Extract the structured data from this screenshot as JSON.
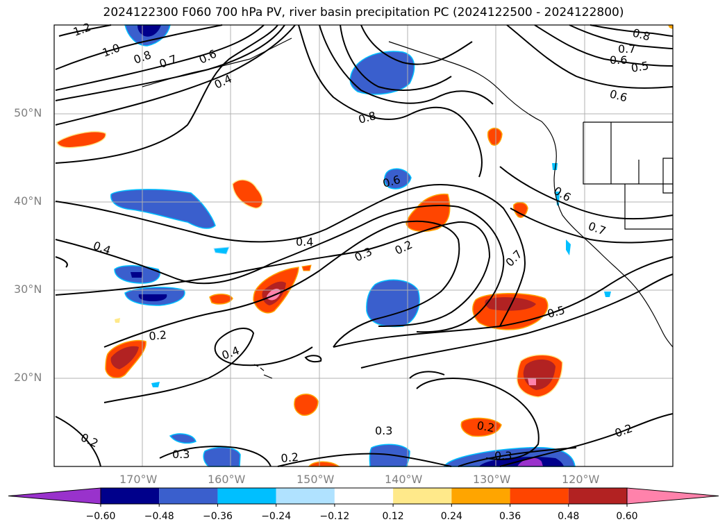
{
  "title": "2024122300 F060 700 hPa PV, river basin precipitation PC (2024122500 - 2024122800)",
  "lat_labels": [
    "50°N",
    "40°N",
    "30°N",
    "20°N"
  ],
  "lon_labels": [
    "170°W",
    "160°W",
    "150°W",
    "140°W",
    "130°W",
    "120°W"
  ],
  "colorbar": {
    "tick_labels": [
      "−0.60",
      "−0.48",
      "−0.36",
      "−0.24",
      "−0.12",
      "0.12",
      "0.24",
      "0.36",
      "0.48",
      "0.60"
    ],
    "colors": [
      "#9932cc",
      "#00008b",
      "#3a5fcd",
      "#00bfff",
      "#b0e2ff",
      "#ffffff",
      "#ffe98a",
      "#ffa500",
      "#ff4500",
      "#b22222",
      "#ff82ab"
    ]
  },
  "contour_labels": [
    {
      "text": "1.2"
    },
    {
      "text": "1.0"
    },
    {
      "text": "0.8"
    },
    {
      "text": "0.7"
    },
    {
      "text": "0.6"
    },
    {
      "text": "0.4"
    },
    {
      "text": "0.8"
    },
    {
      "text": "0.6"
    },
    {
      "text": "0.4"
    },
    {
      "text": "0.4"
    },
    {
      "text": "0.3"
    },
    {
      "text": "0.2"
    },
    {
      "text": "0.7"
    },
    {
      "text": "0.5"
    },
    {
      "text": "0.2"
    },
    {
      "text": "0.4"
    },
    {
      "text": "0.2"
    },
    {
      "text": "0.3"
    },
    {
      "text": "0.2"
    },
    {
      "text": "0.3"
    },
    {
      "text": "0.2"
    },
    {
      "text": "0.3"
    },
    {
      "text": "0.2"
    },
    {
      "text": "0.8"
    },
    {
      "text": "0.7"
    },
    {
      "text": "0.6"
    },
    {
      "text": "0.5"
    },
    {
      "text": "0.6"
    },
    {
      "text": "0.6"
    },
    {
      "text": "0.7"
    }
  ]
}
